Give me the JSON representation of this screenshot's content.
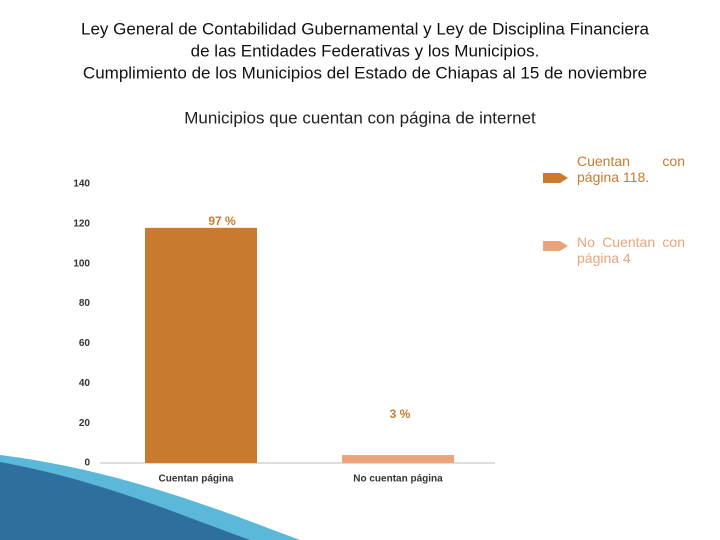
{
  "chart_data": {
    "type": "bar",
    "title": [
      "Ley General de Contabilidad Gubernamental y Ley de Disciplina Financiera",
      "de las Entidades Federativas y los Municipios.",
      "Cumplimiento de los Municipios del Estado de Chiapas al 15 de noviembre"
    ],
    "subtitle": "Municipios que cuentan con página de internet",
    "categories": [
      "Cuentan página",
      "No cuentan página"
    ],
    "values": [
      118,
      4
    ],
    "colors": [
      "#c97a2e",
      "#eba37c"
    ],
    "annotations": [
      "97 %",
      "3 %"
    ],
    "legend": [
      "Cuentan con página 118.",
      "No Cuentan con página 4"
    ],
    "ylim": [
      0,
      140
    ],
    "yticks": [
      0,
      20,
      40,
      60,
      80,
      100,
      120,
      140
    ]
  }
}
